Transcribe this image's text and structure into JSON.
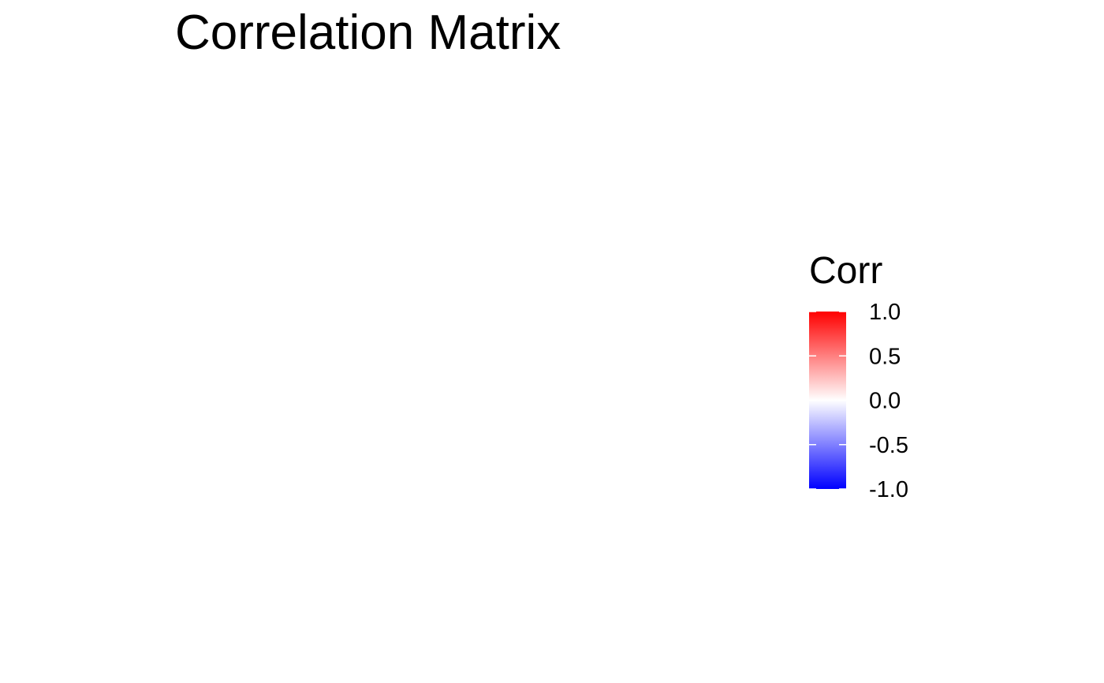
{
  "chart_data": {
    "type": "heatmap",
    "title": "Correlation Matrix",
    "xlabel": "",
    "ylabel": "",
    "categories": [],
    "values": [],
    "legend": {
      "title": "Corr",
      "position": "right",
      "range": [
        -1.0,
        1.0
      ],
      "breaks": [
        1.0,
        0.5,
        0.0,
        -0.5,
        -1.0
      ],
      "break_labels": [
        "1.0",
        "0.5",
        "0.0",
        "-0.5",
        "-1.0"
      ],
      "colors": {
        "high": "#FF0000",
        "mid": "#FFFFFF",
        "low": "#0000FF"
      }
    }
  }
}
